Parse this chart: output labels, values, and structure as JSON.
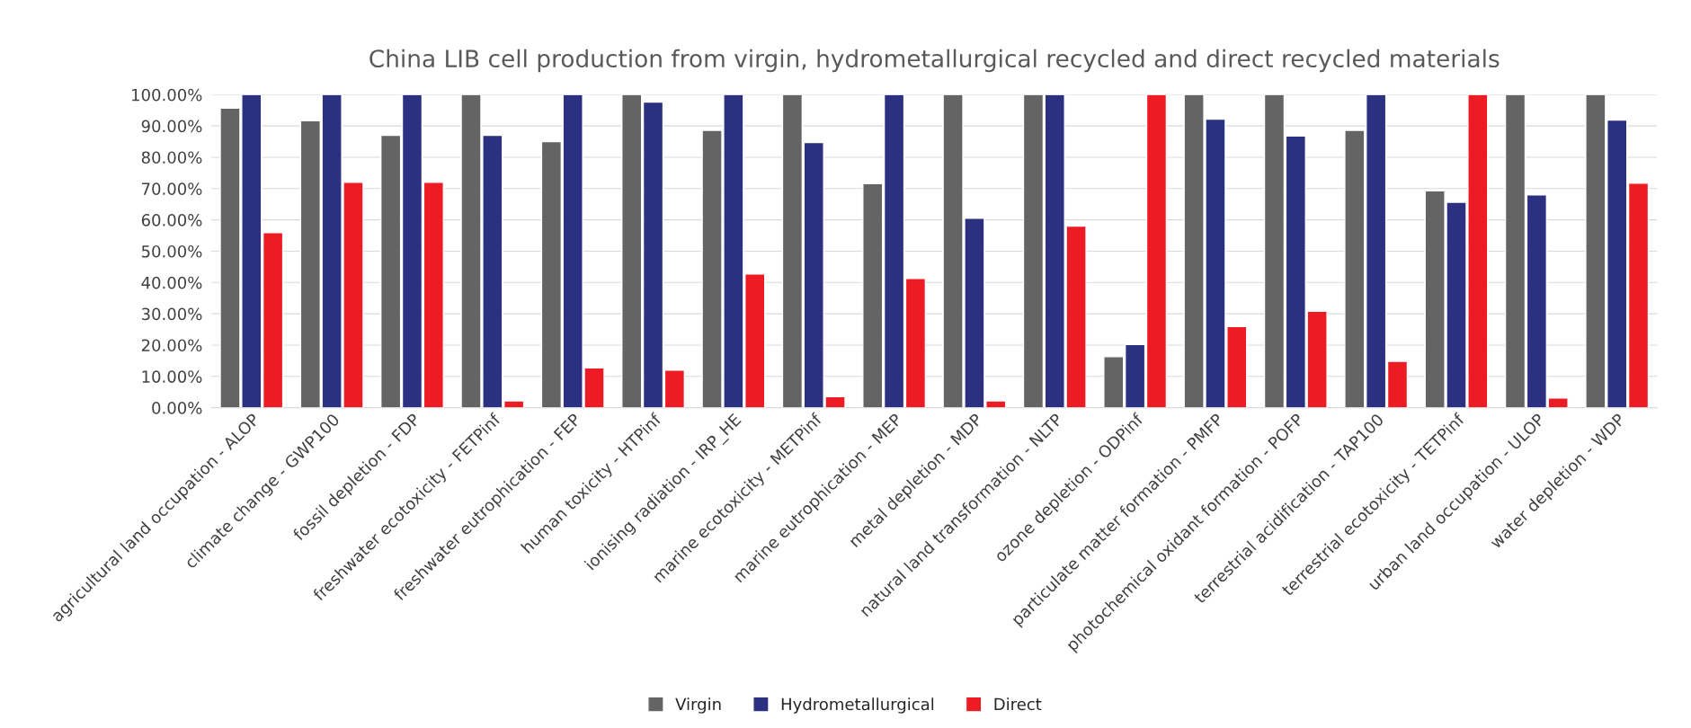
{
  "chart_data": {
    "type": "bar",
    "title": "China LIB cell production from virgin, hydrometallurgical recycled and direct recycled materials",
    "categories": [
      "agricultural land occupation - ALOP",
      "climate change - GWP100",
      "fossil depletion - FDP",
      "freshwater ecotoxicity - FETPinf",
      "freshwater eutrophication - FEP",
      "human toxicity - HTPinf",
      "ionising radiation - IRP_HE",
      "marine ecotoxicity - METPinf",
      "marine eutrophication - MEP",
      "metal depletion - MDP",
      "natural land transformation - NLTP",
      "ozone depletion - ODPinf",
      "particulate matter formation - PMFP",
      "photochemical oxidant formation - POFP",
      "terrestrial acidification - TAP100",
      "terrestrial ecotoxicity - TETPinf",
      "urban land occupation - ULOP",
      "water depletion - WDP"
    ],
    "series": [
      {
        "name": "Virgin",
        "color": "#646464",
        "values": [
          95.7,
          91.7,
          87,
          100,
          85,
          100,
          88.6,
          100,
          71.6,
          100,
          100,
          16.3,
          100,
          100,
          88.6,
          69.3,
          100,
          100
        ]
      },
      {
        "name": "Hydrometallurgical",
        "color": "#2b3080",
        "values": [
          100,
          100,
          100,
          87,
          100,
          97.6,
          100,
          84.7,
          100,
          60.5,
          100,
          20.2,
          92.2,
          86.8,
          100,
          65.6,
          68,
          91.9
        ]
      },
      {
        "name": "Direct",
        "color": "#ed1c24",
        "values": [
          55.9,
          72,
          72,
          2.2,
          12.7,
          12,
          42.7,
          3.5,
          41.3,
          2.2,
          58,
          100,
          25.9,
          30.8,
          14.8,
          100,
          3.1,
          71.7
        ]
      }
    ],
    "ylim": [
      0,
      100
    ],
    "yticks": [
      {
        "value": 0,
        "label": "0.00%"
      },
      {
        "value": 10,
        "label": "10.00%"
      },
      {
        "value": 20,
        "label": "20.00%"
      },
      {
        "value": 30,
        "label": "30.00%"
      },
      {
        "value": 40,
        "label": "40.00%"
      },
      {
        "value": 50,
        "label": "50.00%"
      },
      {
        "value": 60,
        "label": "60.00%"
      },
      {
        "value": 70,
        "label": "70.00%"
      },
      {
        "value": 80,
        "label": "80.00%"
      },
      {
        "value": 90,
        "label": "90.00%"
      },
      {
        "value": 100,
        "label": "100.00%"
      }
    ],
    "grid": "y",
    "legend": "bottom"
  }
}
